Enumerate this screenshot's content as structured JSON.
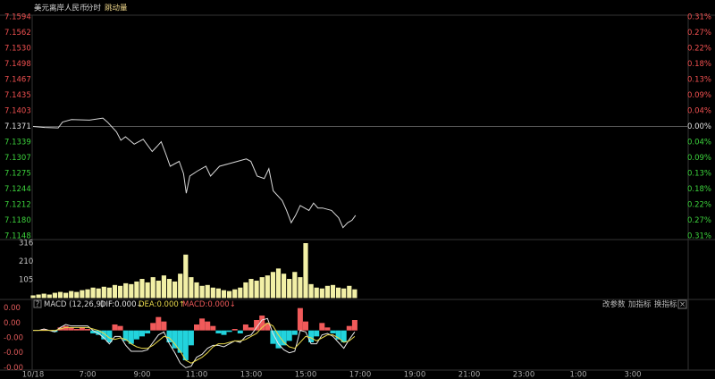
{
  "tabs": [
    "分时",
    "跳动量"
  ],
  "toolbar": [
    "改参数",
    "加指标",
    "换指标"
  ],
  "chart_data": [
    {
      "type": "line",
      "title": "美元离岸人民币",
      "color": "#d8d8d8",
      "xlim": [
        5,
        29
      ],
      "x": [
        5.0,
        5.43,
        5.92,
        6.08,
        6.41,
        7.07,
        7.56,
        7.73,
        8.06,
        8.22,
        8.39,
        8.71,
        9.04,
        9.37,
        9.54,
        9.7,
        9.87,
        10.03,
        10.36,
        10.52,
        10.62,
        10.75,
        11.02,
        11.34,
        11.51,
        11.84,
        12.17,
        12.5,
        12.82,
        12.99,
        13.22,
        13.48,
        13.65,
        13.81,
        14.14,
        14.3,
        14.47,
        14.63,
        14.8,
        15.12,
        15.29,
        15.45,
        15.62,
        15.95,
        16.21,
        16.37,
        16.54,
        16.7,
        16.83
      ],
      "values": [
        7.1371,
        7.1369,
        7.1368,
        7.138,
        7.1385,
        7.1384,
        7.1388,
        7.138,
        7.136,
        7.1343,
        7.135,
        7.1335,
        7.1345,
        7.132,
        7.133,
        7.134,
        7.1315,
        7.129,
        7.13,
        7.1275,
        7.1235,
        7.127,
        7.128,
        7.129,
        7.127,
        7.129,
        7.1295,
        7.13,
        7.1305,
        7.13,
        7.127,
        7.1265,
        7.1285,
        7.124,
        7.122,
        7.12,
        7.1175,
        7.119,
        7.121,
        7.12,
        7.1215,
        7.1205,
        7.1205,
        7.12,
        7.1185,
        7.1165,
        7.1175,
        7.118,
        7.119
      ],
      "ylim": [
        7.1148,
        7.1594
      ],
      "yticks": [
        7.1594,
        7.1562,
        {
          "value": 7.153,
          "label": "7.1530"
        },
        7.1498,
        7.1467,
        7.1435,
        7.1403,
        7.1371,
        7.1339,
        7.1307,
        7.1275,
        7.1244,
        7.1212,
        {
          "value": 7.118,
          "label": "7.1180"
        },
        7.1148
      ],
      "y2lim": [
        -0.3125,
        0.3125
      ],
      "y2ticks": [
        {
          "value": 0.3125,
          "label": "0.31%"
        },
        {
          "value": 0.2679,
          "label": "0.27%"
        },
        {
          "value": 0.2232,
          "label": "0.22%"
        },
        {
          "value": 0.1786,
          "label": "0.18%"
        },
        {
          "value": 0.1339,
          "label": "0.13%"
        },
        {
          "value": 0.0893,
          "label": "0.09%"
        },
        {
          "value": 0.0446,
          "label": "0.04%"
        },
        {
          "value": 0,
          "label": "0.00%"
        },
        {
          "value": -0.0446,
          "label": "0.04%"
        },
        {
          "value": -0.0893,
          "label": "0.09%"
        },
        {
          "value": -0.1339,
          "label": "0.13%"
        },
        {
          "value": -0.1786,
          "label": "0.18%"
        },
        {
          "value": -0.2232,
          "label": "0.22%"
        },
        {
          "value": -0.2679,
          "label": "0.27%"
        },
        {
          "value": -0.3125,
          "label": "0.31%"
        }
      ],
      "up_color": "#f05050",
      "down_color": "#3cd23c",
      "flat_color": "#e0e0e0"
    },
    {
      "type": "bar",
      "color": "#f2f0a6",
      "xlim": [
        5,
        29
      ],
      "x": [
        5,
        5.2,
        5.4,
        5.6,
        5.8,
        6,
        6.2,
        6.4,
        6.6,
        6.8,
        7,
        7.2,
        7.4,
        7.6,
        7.8,
        8,
        8.2,
        8.4,
        8.6,
        8.8,
        9,
        9.2,
        9.4,
        9.6,
        9.8,
        10,
        10.2,
        10.4,
        10.6,
        10.8,
        11,
        11.2,
        11.4,
        11.6,
        11.8,
        12,
        12.2,
        12.4,
        12.6,
        12.8,
        13,
        13.2,
        13.4,
        13.6,
        13.8,
        14,
        14.2,
        14.4,
        14.6,
        14.8,
        15,
        15.2,
        15.4,
        15.6,
        15.8,
        16,
        16.2,
        16.4,
        16.6,
        16.8
      ],
      "values": [
        15,
        20,
        25,
        20,
        30,
        35,
        30,
        40,
        35,
        45,
        50,
        60,
        55,
        65,
        60,
        75,
        70,
        85,
        80,
        95,
        110,
        90,
        120,
        100,
        130,
        110,
        95,
        140,
        250,
        120,
        90,
        70,
        75,
        60,
        55,
        45,
        40,
        50,
        60,
        90,
        110,
        100,
        120,
        130,
        150,
        170,
        140,
        110,
        150,
        120,
        316,
        80,
        60,
        55,
        70,
        75,
        60,
        55,
        70,
        50
      ],
      "ylim": [
        0,
        316
      ],
      "yticks": [
        316,
        210,
        105
      ]
    },
    {
      "type": "macd",
      "title": "MACD (12,26,9)",
      "xlim": [
        5,
        29
      ],
      "x": [
        5,
        5.2,
        5.4,
        5.6,
        5.8,
        6,
        6.2,
        6.4,
        6.6,
        6.8,
        7,
        7.2,
        7.4,
        7.6,
        7.8,
        8,
        8.2,
        8.4,
        8.6,
        8.8,
        9,
        9.2,
        9.4,
        9.6,
        9.8,
        10,
        10.2,
        10.4,
        10.6,
        10.8,
        11,
        11.2,
        11.4,
        11.6,
        11.8,
        12,
        12.2,
        12.4,
        12.6,
        12.8,
        13,
        13.2,
        13.4,
        13.6,
        13.8,
        14,
        14.2,
        14.4,
        14.6,
        14.8,
        15,
        15.2,
        15.4,
        15.6,
        15.8,
        16,
        16.2,
        16.4,
        16.6,
        16.8
      ],
      "series": [
        {
          "name": "DIF:0.000↓",
          "kind": "line",
          "color": "#e8e8e8",
          "values": [
            0,
            0,
            0.0001,
            0,
            -0.0001,
            0.0002,
            0.0004,
            0.0003,
            0.0003,
            0.0003,
            0.0003,
            0,
            -0.0002,
            -0.0005,
            -0.0009,
            -0.0004,
            -0.0004,
            -0.001,
            -0.0014,
            -0.0014,
            -0.0014,
            -0.0013,
            -0.0008,
            -0.0003,
            -0.0001,
            -0.0009,
            -0.0015,
            -0.0022,
            -0.0025,
            -0.0024,
            -0.0018,
            -0.0016,
            -0.0012,
            -0.001,
            -0.001,
            -0.0011,
            -0.0009,
            -0.0007,
            -0.0008,
            -0.0004,
            -0.0003,
            0.0002,
            0.0007,
            0.0008,
            -0.0002,
            -0.0009,
            -0.0013,
            -0.0015,
            -0.0014,
            0,
            -0.0001,
            -0.0009,
            -0.0009,
            -0.0003,
            -0.0002,
            -0.0004,
            -0.0008,
            -0.0012,
            -0.0006,
            -0.0001
          ]
        },
        {
          "name": "DEA:0.000↑",
          "kind": "line",
          "color": "#e8d84a",
          "values": [
            0,
            0,
            0,
            0,
            0,
            0.0001,
            0.0002,
            0.0002,
            0.0002,
            0.0002,
            0.0002,
            0.0001,
            0,
            -0.0002,
            -0.0005,
            -0.0006,
            -0.0005,
            -0.0006,
            -0.0009,
            -0.0011,
            -0.0012,
            -0.0012,
            -0.001,
            -0.0007,
            -0.0004,
            -0.0005,
            -0.0009,
            -0.0014,
            -0.002,
            -0.0022,
            -0.002,
            -0.0018,
            -0.0015,
            -0.0011,
            -0.0009,
            -0.0009,
            -0.0008,
            -0.0007,
            -0.0007,
            -0.0006,
            -0.0004,
            -0.0002,
            0.0002,
            0.0005,
            0.0003,
            -0.0003,
            -0.0008,
            -0.0011,
            -0.0012,
            -0.0008,
            -0.0004,
            -0.0005,
            -0.0007,
            -0.0005,
            -0.0003,
            -0.0003,
            -0.0005,
            -0.0008,
            -0.0007,
            -0.0004
          ]
        },
        {
          "name": "MACD:0.000↓",
          "kind": "bar",
          "color": "#f05a5a",
          "negative_color": "#22d3dd",
          "values": [
            0,
            0,
            0.0001,
            0,
            -0.0001,
            0.0002,
            0.0003,
            0.0002,
            0.0001,
            0.0002,
            0.0001,
            -0.0002,
            -0.0003,
            -0.0006,
            -0.0008,
            0.0004,
            0.0003,
            -0.0007,
            -0.0009,
            -0.0006,
            -0.0004,
            -0.0002,
            0.0005,
            0.0009,
            0.0006,
            -0.0008,
            -0.0012,
            -0.0015,
            -0.002,
            -0.001,
            0.0004,
            0.0008,
            0.0006,
            0.0003,
            -0.0002,
            -0.0003,
            -0.0001,
            0.0001,
            -0.0002,
            0.0004,
            0.0002,
            0.0007,
            0.001,
            0.0005,
            -0.0009,
            -0.0012,
            -0.001,
            -0.0007,
            -0.0003,
            0.0015,
            0.0006,
            -0.0008,
            -0.0004,
            0.0005,
            0.0002,
            -0.0002,
            -0.0006,
            -0.0008,
            0.0003,
            0.0007
          ]
        }
      ],
      "ylim": [
        -0.0026,
        0.0019
      ],
      "yticks": [
        {
          "value": 0.0015,
          "label": "0.00"
        },
        {
          "value": 0.0005,
          "label": "0.00"
        },
        {
          "value": -0.0005,
          "label": "-0.00"
        },
        {
          "value": -0.0015,
          "label": "-0.00"
        },
        {
          "value": -0.0025,
          "label": "-0.00"
        }
      ],
      "tick_color": "#e05a5a",
      "xticks": [
        {
          "value": 5,
          "label": "10/18"
        },
        {
          "value": 7,
          "label": "7:00"
        },
        {
          "value": 9,
          "label": "9:00"
        },
        {
          "value": 11,
          "label": "11:00"
        },
        {
          "value": 13,
          "label": "13:00"
        },
        {
          "value": 15,
          "label": "15:00"
        },
        {
          "value": 17,
          "label": "17:00"
        },
        {
          "value": 19,
          "label": "19:00"
        },
        {
          "value": 21,
          "label": "21:00"
        },
        {
          "value": 23,
          "label": "23:00"
        },
        {
          "value": 25,
          "label": "1:00"
        },
        {
          "value": 27,
          "label": "3:00"
        }
      ]
    }
  ]
}
